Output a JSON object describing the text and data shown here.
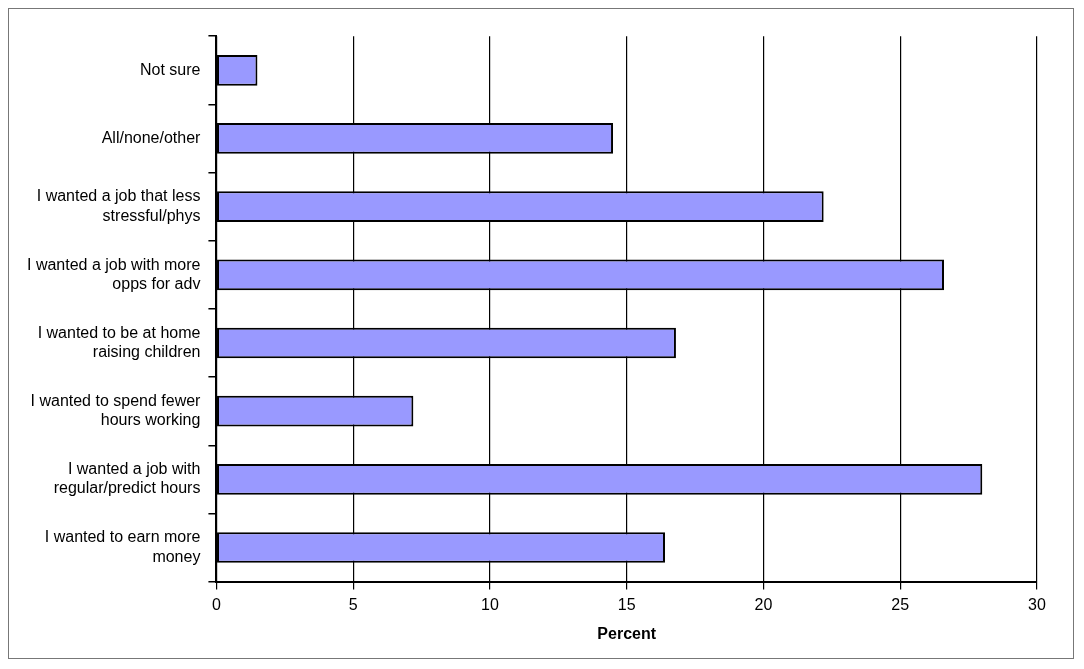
{
  "chart_data": {
    "type": "bar",
    "orientation": "horizontal",
    "xlabel": "Percent",
    "categories": [
      "Not sure",
      "All/none/other",
      "I wanted a job that less stressful/phys",
      "I wanted a job with more opps for adv",
      "I wanted to be at home raising children",
      "I wanted to spend fewer hours working",
      "I wanted a job with regular/predict hours",
      "I wanted to earn more money"
    ],
    "values": [
      1.5,
      14.5,
      22.2,
      26.6,
      16.8,
      7.2,
      28.0,
      16.4
    ],
    "color": "#9999ff",
    "xlim": [
      0,
      30
    ],
    "xticks": [
      0,
      5,
      10,
      15,
      20,
      25,
      30
    ],
    "grid": "x",
    "legend": false
  }
}
